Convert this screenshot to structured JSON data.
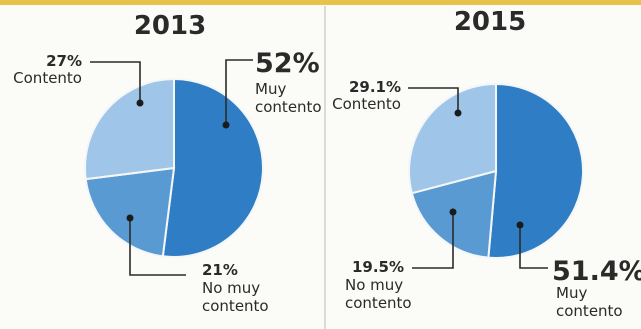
{
  "chart_data": [
    {
      "type": "pie",
      "title": "2013",
      "slices": [
        {
          "value": 52,
          "percent_label": "52%",
          "label_lines": [
            "Muy",
            "contento"
          ],
          "color": "#2f7ec5"
        },
        {
          "value": 21,
          "percent_label": "21%",
          "label_lines": [
            "No muy",
            "contento"
          ],
          "color": "#5a9ad2"
        },
        {
          "value": 27,
          "percent_label": "27%",
          "label_lines": [
            "Contento"
          ],
          "color": "#9fc6e8"
        }
      ]
    },
    {
      "type": "pie",
      "title": "2015",
      "slices": [
        {
          "value": 51.4,
          "percent_label": "51.4%",
          "label_lines": [
            "Muy",
            "contento"
          ],
          "color": "#2f7ec5"
        },
        {
          "value": 19.5,
          "percent_label": "19.5%",
          "label_lines": [
            "No muy",
            "contento"
          ],
          "color": "#5a9ad2"
        },
        {
          "value": 29.1,
          "percent_label": "29.1%",
          "label_lines": [
            "Contento"
          ],
          "color": "#9fc6e8"
        }
      ]
    }
  ]
}
